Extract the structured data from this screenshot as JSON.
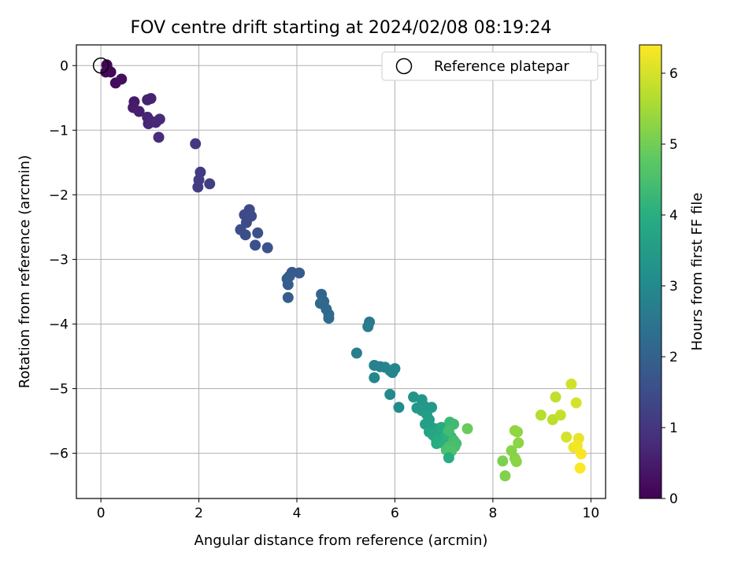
{
  "chart_data": {
    "type": "scatter",
    "title": "FOV centre drift starting at 2024/02/08 08:19:24",
    "xlabel": "Angular distance from reference (arcmin)",
    "ylabel": "Rotation from reference (arcmin)",
    "xlim": [
      -0.5,
      10.3
    ],
    "ylim": [
      -6.7,
      0.32
    ],
    "xticks": [
      0,
      2,
      4,
      6,
      8,
      10
    ],
    "yticks": [
      0,
      -1,
      -2,
      -3,
      -4,
      -5,
      -6
    ],
    "grid": true,
    "legend": {
      "placement": "upper right",
      "entries": [
        "Reference platepar"
      ]
    },
    "reference_point": {
      "x": 0,
      "y": 0
    },
    "colorbar": {
      "label": "Hours from first FF file",
      "colormap": "viridis",
      "range": [
        0,
        6.4
      ],
      "ticks": [
        0,
        1,
        2,
        3,
        4,
        5,
        6
      ]
    },
    "points": [
      {
        "x": 0.12,
        "y": 0.01,
        "h": 0.05
      },
      {
        "x": 0.15,
        "y": -0.07,
        "h": 0.08
      },
      {
        "x": 0.1,
        "y": -0.1,
        "h": 0.1
      },
      {
        "x": 0.2,
        "y": -0.1,
        "h": 0.12
      },
      {
        "x": 0.3,
        "y": -0.27,
        "h": 0.2
      },
      {
        "x": 0.42,
        "y": -0.21,
        "h": 0.25
      },
      {
        "x": 0.68,
        "y": -0.56,
        "h": 0.45
      },
      {
        "x": 0.66,
        "y": -0.65,
        "h": 0.5
      },
      {
        "x": 0.78,
        "y": -0.71,
        "h": 0.55
      },
      {
        "x": 0.95,
        "y": -0.53,
        "h": 0.6
      },
      {
        "x": 1.02,
        "y": -0.51,
        "h": 0.62
      },
      {
        "x": 0.95,
        "y": -0.8,
        "h": 0.65
      },
      {
        "x": 0.97,
        "y": -0.9,
        "h": 0.68
      },
      {
        "x": 1.05,
        "y": -0.87,
        "h": 0.7
      },
      {
        "x": 1.12,
        "y": -0.88,
        "h": 0.72
      },
      {
        "x": 1.2,
        "y": -0.83,
        "h": 0.75
      },
      {
        "x": 1.18,
        "y": -1.11,
        "h": 0.78
      },
      {
        "x": 1.93,
        "y": -1.21,
        "h": 1.05
      },
      {
        "x": 2.03,
        "y": -1.65,
        "h": 1.1
      },
      {
        "x": 2.0,
        "y": -1.77,
        "h": 1.12
      },
      {
        "x": 1.98,
        "y": -1.88,
        "h": 1.15
      },
      {
        "x": 2.22,
        "y": -1.83,
        "h": 1.18
      },
      {
        "x": 2.93,
        "y": -2.31,
        "h": 1.4
      },
      {
        "x": 3.03,
        "y": -2.23,
        "h": 1.42
      },
      {
        "x": 3.07,
        "y": -2.33,
        "h": 1.45
      },
      {
        "x": 2.97,
        "y": -2.43,
        "h": 1.47
      },
      {
        "x": 2.85,
        "y": -2.54,
        "h": 1.5
      },
      {
        "x": 2.95,
        "y": -2.62,
        "h": 1.52
      },
      {
        "x": 3.2,
        "y": -2.59,
        "h": 1.55
      },
      {
        "x": 3.15,
        "y": -2.78,
        "h": 1.58
      },
      {
        "x": 3.4,
        "y": -2.82,
        "h": 1.62
      },
      {
        "x": 3.9,
        "y": -3.2,
        "h": 1.8
      },
      {
        "x": 4.05,
        "y": -3.21,
        "h": 1.82
      },
      {
        "x": 3.85,
        "y": -3.26,
        "h": 1.84
      },
      {
        "x": 3.8,
        "y": -3.3,
        "h": 1.86
      },
      {
        "x": 3.82,
        "y": -3.39,
        "h": 1.88
      },
      {
        "x": 3.82,
        "y": -3.59,
        "h": 1.9
      },
      {
        "x": 4.5,
        "y": -3.54,
        "h": 2.1
      },
      {
        "x": 4.55,
        "y": -3.65,
        "h": 2.12
      },
      {
        "x": 4.48,
        "y": -3.68,
        "h": 2.14
      },
      {
        "x": 4.6,
        "y": -3.77,
        "h": 2.16
      },
      {
        "x": 4.65,
        "y": -3.85,
        "h": 2.18
      },
      {
        "x": 4.65,
        "y": -3.91,
        "h": 2.2
      },
      {
        "x": 5.48,
        "y": -3.97,
        "h": 2.6
      },
      {
        "x": 5.45,
        "y": -4.04,
        "h": 2.62
      },
      {
        "x": 5.22,
        "y": -4.45,
        "h": 2.7
      },
      {
        "x": 5.58,
        "y": -4.64,
        "h": 2.8
      },
      {
        "x": 5.7,
        "y": -4.66,
        "h": 2.82
      },
      {
        "x": 5.8,
        "y": -4.67,
        "h": 2.84
      },
      {
        "x": 5.9,
        "y": -4.72,
        "h": 2.86
      },
      {
        "x": 6.0,
        "y": -4.69,
        "h": 2.88
      },
      {
        "x": 5.95,
        "y": -4.75,
        "h": 2.9
      },
      {
        "x": 5.58,
        "y": -4.83,
        "h": 2.92
      },
      {
        "x": 5.9,
        "y": -5.09,
        "h": 3.0
      },
      {
        "x": 6.08,
        "y": -5.29,
        "h": 3.05
      },
      {
        "x": 6.38,
        "y": -5.13,
        "h": 3.3
      },
      {
        "x": 6.55,
        "y": -5.17,
        "h": 3.35
      },
      {
        "x": 6.45,
        "y": -5.3,
        "h": 3.38
      },
      {
        "x": 6.6,
        "y": -5.27,
        "h": 3.4
      },
      {
        "x": 6.75,
        "y": -5.29,
        "h": 3.42
      },
      {
        "x": 6.55,
        "y": -5.34,
        "h": 3.45
      },
      {
        "x": 6.65,
        "y": -5.4,
        "h": 3.5
      },
      {
        "x": 6.7,
        "y": -5.48,
        "h": 3.55
      },
      {
        "x": 6.62,
        "y": -5.55,
        "h": 3.58
      },
      {
        "x": 6.75,
        "y": -5.6,
        "h": 3.6
      },
      {
        "x": 6.88,
        "y": -5.62,
        "h": 3.65
      },
      {
        "x": 6.7,
        "y": -5.67,
        "h": 3.7
      },
      {
        "x": 6.78,
        "y": -5.72,
        "h": 3.75
      },
      {
        "x": 6.9,
        "y": -5.75,
        "h": 3.8
      },
      {
        "x": 6.85,
        "y": -5.8,
        "h": 3.85
      },
      {
        "x": 6.95,
        "y": -5.6,
        "h": 3.9
      },
      {
        "x": 6.85,
        "y": -5.85,
        "h": 3.95
      },
      {
        "x": 7.0,
        "y": -5.85,
        "h": 4.0
      },
      {
        "x": 7.05,
        "y": -5.72,
        "h": 4.05
      },
      {
        "x": 7.15,
        "y": -5.75,
        "h": 4.1
      },
      {
        "x": 7.12,
        "y": -5.52,
        "h": 4.3
      },
      {
        "x": 7.2,
        "y": -5.55,
        "h": 4.35
      },
      {
        "x": 7.1,
        "y": -5.65,
        "h": 4.4
      },
      {
        "x": 7.2,
        "y": -5.8,
        "h": 4.42
      },
      {
        "x": 7.25,
        "y": -5.85,
        "h": 4.45
      },
      {
        "x": 7.22,
        "y": -5.9,
        "h": 4.48
      },
      {
        "x": 7.1,
        "y": -5.9,
        "h": 4.5
      },
      {
        "x": 7.05,
        "y": -5.95,
        "h": 4.52
      },
      {
        "x": 7.15,
        "y": -5.97,
        "h": 4.55
      },
      {
        "x": 7.1,
        "y": -6.07,
        "h": 3.95
      },
      {
        "x": 7.48,
        "y": -5.62,
        "h": 4.9
      },
      {
        "x": 8.2,
        "y": -6.12,
        "h": 5.1
      },
      {
        "x": 8.25,
        "y": -6.35,
        "h": 5.15
      },
      {
        "x": 8.38,
        "y": -5.96,
        "h": 5.2
      },
      {
        "x": 8.45,
        "y": -6.08,
        "h": 5.22
      },
      {
        "x": 8.48,
        "y": -6.13,
        "h": 5.25
      },
      {
        "x": 8.52,
        "y": -5.84,
        "h": 5.28
      },
      {
        "x": 8.5,
        "y": -5.67,
        "h": 5.3
      },
      {
        "x": 8.45,
        "y": -5.65,
        "h": 5.32
      },
      {
        "x": 8.98,
        "y": -5.41,
        "h": 5.7
      },
      {
        "x": 9.22,
        "y": -5.48,
        "h": 5.75
      },
      {
        "x": 9.28,
        "y": -5.13,
        "h": 5.8
      },
      {
        "x": 9.38,
        "y": -5.41,
        "h": 5.85
      },
      {
        "x": 9.5,
        "y": -5.75,
        "h": 6.0
      },
      {
        "x": 9.6,
        "y": -4.93,
        "h": 5.95
      },
      {
        "x": 9.7,
        "y": -5.22,
        "h": 6.0
      },
      {
        "x": 9.75,
        "y": -5.77,
        "h": 6.2
      },
      {
        "x": 9.65,
        "y": -5.91,
        "h": 6.25
      },
      {
        "x": 9.72,
        "y": -5.88,
        "h": 6.3
      },
      {
        "x": 9.8,
        "y": -6.01,
        "h": 6.35
      },
      {
        "x": 9.78,
        "y": -6.23,
        "h": 6.38
      }
    ]
  }
}
